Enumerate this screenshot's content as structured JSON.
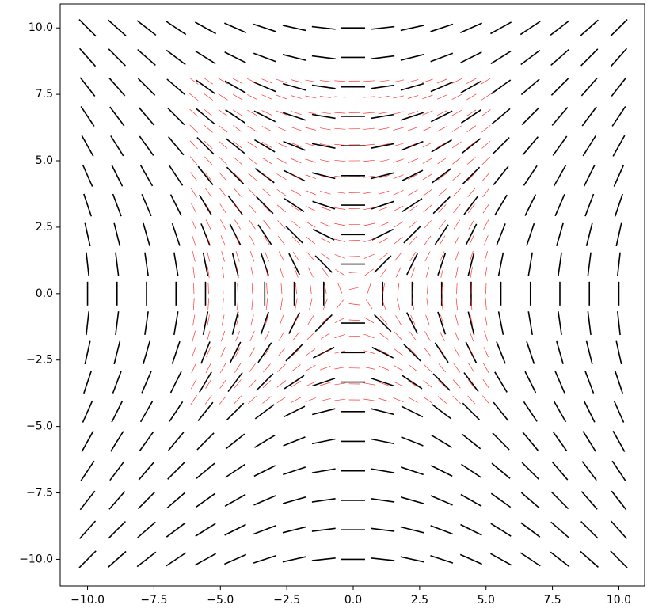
{
  "chart_data": {
    "type": "quiver",
    "xlim": [
      -11.03,
      10.97
    ],
    "ylim": [
      -11.0,
      10.9
    ],
    "xticks": [
      {
        "value": -10,
        "label": "−10.0"
      },
      {
        "value": -7.5,
        "label": "−7.5"
      },
      {
        "value": -5,
        "label": "−5.0"
      },
      {
        "value": -2.5,
        "label": "−2.5"
      },
      {
        "value": 0,
        "label": "0.0"
      },
      {
        "value": 2.5,
        "label": "2.5"
      },
      {
        "value": 5,
        "label": "5.0"
      },
      {
        "value": 7.5,
        "label": "7.5"
      },
      {
        "value": 10,
        "label": "10.0"
      }
    ],
    "yticks": [
      {
        "value": -10,
        "label": "−10.0"
      },
      {
        "value": -7.5,
        "label": "−7.5"
      },
      {
        "value": -5,
        "label": "−5.0"
      },
      {
        "value": -2.5,
        "label": "−2.5"
      },
      {
        "value": 0,
        "label": "0.0"
      },
      {
        "value": 2.5,
        "label": "2.5"
      },
      {
        "value": 5,
        "label": "5.0"
      },
      {
        "value": 7.5,
        "label": "7.5"
      },
      {
        "value": 10,
        "label": "10.0"
      }
    ],
    "series": [
      {
        "color": "#000000",
        "x": [
          -10,
          -8.89,
          -7.78,
          -6.67,
          -5.56,
          -4.44,
          -3.33,
          -2.22,
          -1.11,
          0,
          1.11,
          2.22,
          3.33,
          4.44,
          5.56,
          6.67,
          7.78,
          8.89,
          10
        ],
        "y": [
          -10,
          -8.89,
          -7.78,
          -6.67,
          -5.56,
          -4.44,
          -3.33,
          -2.22,
          -1.11,
          0,
          1.11,
          2.22,
          3.33,
          4.44,
          5.56,
          6.67,
          7.78,
          8.89,
          10
        ]
      },
      {
        "color": "#ff0000",
        "x": [
          -6,
          -5.45,
          -4.9,
          -4.35,
          -3.8,
          -3.25,
          -2.7,
          -2.15,
          -1.6,
          -1.05,
          -0.5,
          0.05,
          0.6,
          1.15,
          1.7,
          2.25,
          2.8,
          3.35,
          3.9,
          4.45,
          5
        ],
        "y": [
          -4,
          -3.4,
          -2.8,
          -2.2,
          -1.6,
          -1,
          -0.4,
          0.2,
          0.8,
          1.4,
          2,
          2.6,
          3.2,
          3.8,
          4.4,
          5,
          5.6,
          6.2,
          6.8,
          7.4,
          8
        ]
      }
    ]
  }
}
